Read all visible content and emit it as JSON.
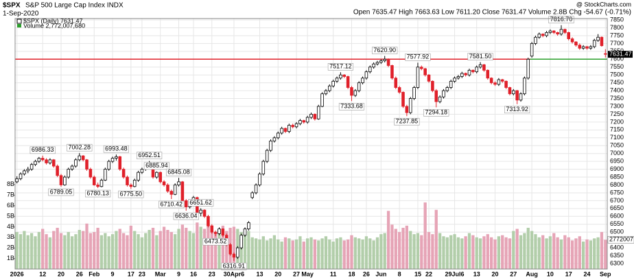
{
  "chart_data": {
    "type": "candlestick",
    "header": {
      "symbol": "$SPX",
      "name": "S&P 500 Large Cap Index INDX",
      "date": "1-Sep-2020",
      "source": "@ StockCharts.com",
      "quote": "Open 7635.47 High 7663.63 Low 7611.20 Close 7631.47 Volume 2.8B Chg -54.67 (-0.71%)"
    },
    "price_name": "$SPX (Daily) 7631.47",
    "volume_name": "Volume 2,772,007,680",
    "last_label": "7631.47",
    "volume_tag": "2772007",
    "up_color": "#000000",
    "down_color": "#e0202a",
    "volume_up_color": "#b2ceaa",
    "volume_down_color": "#e6a4b6",
    "hline": 7600,
    "hline_color": "#e0202a",
    "hline_above_color": "#2ca02c",
    "grid": true,
    "ylim": [
      6265,
      7859
    ],
    "yticks": [
      6300,
      6350,
      6400,
      6450,
      6500,
      6550,
      6600,
      6650,
      6700,
      6750,
      6800,
      6850,
      6900,
      6950,
      7000,
      7050,
      7100,
      7150,
      7200,
      7250,
      7300,
      7350,
      7400,
      7450,
      7500,
      7550,
      7600,
      7650,
      7700,
      7750,
      7800,
      7850
    ],
    "vlim": [
      0,
      23.7
    ],
    "vticks": [
      {
        "value": 1,
        "label": "1B"
      },
      {
        "value": 2,
        "label": "2B"
      },
      {
        "value": 3,
        "label": "3B"
      },
      {
        "value": 4,
        "label": "4B"
      },
      {
        "value": 5,
        "label": "5B"
      },
      {
        "value": 6,
        "label": "6B"
      },
      {
        "value": 7,
        "label": "7B"
      },
      {
        "value": 8,
        "label": "8B"
      }
    ],
    "categories": [
      "2026",
      null,
      null,
      null,
      null,
      null,
      null,
      "12",
      null,
      null,
      null,
      null,
      "20",
      null,
      null,
      null,
      null,
      "26",
      null,
      null,
      null,
      "Feb",
      null,
      null,
      null,
      null,
      "9",
      null,
      null,
      null,
      null,
      "17",
      null,
      null,
      "23",
      null,
      null,
      null,
      null,
      "Mar",
      null,
      null,
      null,
      null,
      "9",
      null,
      null,
      null,
      "16",
      null,
      null,
      null,
      null,
      "23",
      null,
      null,
      null,
      null,
      null,
      "30Apr6",
      null,
      null,
      null,
      null,
      null,
      null,
      "13",
      null,
      null,
      null,
      null,
      "20",
      null,
      null,
      null,
      null,
      "27",
      null,
      null,
      "May",
      null,
      null,
      null,
      null,
      null,
      null,
      "11",
      null,
      null,
      null,
      null,
      "18",
      null,
      null,
      null,
      "26",
      null,
      null,
      null,
      "Jun",
      null,
      null,
      null,
      null,
      "8",
      null,
      null,
      null,
      null,
      "15",
      null,
      null,
      "22",
      null,
      null,
      null,
      null,
      null,
      null,
      "29Jul6",
      null,
      null,
      null,
      null,
      null,
      "13",
      null,
      null,
      null,
      null,
      "20",
      null,
      null,
      null,
      null,
      "27",
      null,
      null,
      null,
      null,
      "Aug",
      null,
      null,
      null,
      null,
      "10",
      null,
      null,
      null,
      null,
      "17",
      null,
      null,
      null,
      null,
      "24",
      null,
      null,
      null,
      null,
      "Sep"
    ],
    "ohlc": [
      [
        6820,
        6855,
        6810,
        6840
      ],
      [
        6840,
        6880,
        6830,
        6870
      ],
      [
        6870,
        6900,
        6860,
        6890
      ],
      [
        6890,
        6915,
        6875,
        6900
      ],
      [
        6900,
        6940,
        6890,
        6930
      ],
      [
        6930,
        6960,
        6920,
        6950
      ],
      [
        6950,
        6978,
        6940,
        6970
      ],
      [
        6970,
        6986.33,
        6950,
        6960
      ],
      [
        6960,
        6970,
        6930,
        6940
      ],
      [
        6940,
        6970,
        6930,
        6960
      ],
      [
        6960,
        6965,
        6910,
        6920
      ],
      [
        6920,
        6930,
        6850,
        6860
      ],
      [
        6860,
        6870,
        6789.05,
        6800
      ],
      [
        6800,
        6860,
        6795,
        6850
      ],
      [
        6850,
        6910,
        6840,
        6900
      ],
      [
        6900,
        6930,
        6890,
        6920
      ],
      [
        6920,
        6970,
        6910,
        6960
      ],
      [
        6960,
        7002.28,
        6950,
        6985
      ],
      [
        6985,
        6990,
        6950,
        6960
      ],
      [
        6960,
        6965,
        6890,
        6900
      ],
      [
        6900,
        6910,
        6840,
        6850
      ],
      [
        6850,
        6860,
        6795,
        6800
      ],
      [
        6800,
        6815,
        6780.13,
        6790
      ],
      [
        6790,
        6840,
        6785,
        6830
      ],
      [
        6830,
        6910,
        6825,
        6900
      ],
      [
        6900,
        6960,
        6890,
        6950
      ],
      [
        6950,
        6980,
        6940,
        6970
      ],
      [
        6970,
        6993.48,
        6955,
        6980
      ],
      [
        6980,
        6985,
        6890,
        6900
      ],
      [
        6900,
        6910,
        6840,
        6850
      ],
      [
        6850,
        6860,
        6790,
        6800
      ],
      [
        6800,
        6810,
        6775.5,
        6790
      ],
      [
        6790,
        6840,
        6785,
        6830
      ],
      [
        6830,
        6890,
        6820,
        6880
      ],
      [
        6880,
        6910,
        6870,
        6900
      ],
      [
        6900,
        6930,
        6890,
        6920
      ],
      [
        6920,
        6952.51,
        6910,
        6935
      ],
      [
        6935,
        6940,
        6840,
        6850
      ],
      [
        6850,
        6885.94,
        6840,
        6880
      ],
      [
        6880,
        6885,
        6810,
        6820
      ],
      [
        6820,
        6830,
        6790,
        6800
      ],
      [
        6800,
        6810,
        6750,
        6760
      ],
      [
        6760,
        6770,
        6710.42,
        6740
      ],
      [
        6740,
        6810,
        6735,
        6800
      ],
      [
        6800,
        6845.08,
        6790,
        6820
      ],
      [
        6820,
        6825,
        6690,
        6700
      ],
      [
        6700,
        6710,
        6636.04,
        6660
      ],
      [
        6660,
        6710,
        6650,
        6700
      ],
      [
        6700,
        6730,
        6690,
        6720
      ],
      [
        6720,
        6725,
        6610,
        6620
      ],
      [
        6620,
        6651.62,
        6600,
        6640
      ],
      [
        6640,
        6645,
        6590,
        6600
      ],
      [
        6600,
        6610,
        6530,
        6540
      ],
      [
        6540,
        6550,
        6490,
        6500
      ],
      [
        6500,
        6510,
        6473.52,
        6490
      ],
      [
        6490,
        6530,
        6480,
        6520
      ],
      [
        6520,
        6525,
        6470,
        6480
      ],
      [
        6480,
        6490,
        6410,
        6420
      ],
      [
        6420,
        6430,
        6350,
        6360
      ],
      [
        6360,
        6370,
        6316.91,
        6340
      ],
      [
        6340,
        6410,
        6330,
        6400
      ],
      [
        6400,
        6490,
        6390,
        6480
      ],
      [
        6480,
        6530,
        6470,
        6520
      ],
      [
        6520,
        6570,
        6510,
        6560
      ],
      [
        6720,
        6760,
        6710,
        6750
      ],
      [
        6750,
        6810,
        6740,
        6800
      ],
      [
        6800,
        6880,
        6790,
        6870
      ],
      [
        6870,
        6960,
        6860,
        6950
      ],
      [
        6950,
        7030,
        6940,
        7020
      ],
      [
        7020,
        7090,
        7010,
        7080
      ],
      [
        7080,
        7110,
        7070,
        7100
      ],
      [
        7100,
        7140,
        7090,
        7130
      ],
      [
        7130,
        7170,
        7120,
        7160
      ],
      [
        7160,
        7165,
        7130,
        7140
      ],
      [
        7140,
        7190,
        7130,
        7180
      ],
      [
        7180,
        7190,
        7160,
        7170
      ],
      [
        7170,
        7200,
        7160,
        7190
      ],
      [
        7190,
        7220,
        7180,
        7210
      ],
      [
        7210,
        7215,
        7190,
        7200
      ],
      [
        7200,
        7240,
        7190,
        7230
      ],
      [
        7230,
        7260,
        7220,
        7250
      ],
      [
        7250,
        7255,
        7210,
        7220
      ],
      [
        7220,
        7310,
        7215,
        7300
      ],
      [
        7300,
        7390,
        7295,
        7380
      ],
      [
        7380,
        7410,
        7370,
        7400
      ],
      [
        7400,
        7440,
        7390,
        7430
      ],
      [
        7430,
        7470,
        7420,
        7460
      ],
      [
        7460,
        7490,
        7450,
        7480
      ],
      [
        7480,
        7517.12,
        7470,
        7500
      ],
      [
        7500,
        7505,
        7480,
        7490
      ],
      [
        7490,
        7495,
        7410,
        7420
      ],
      [
        7420,
        7430,
        7333.68,
        7370
      ],
      [
        7370,
        7410,
        7360,
        7400
      ],
      [
        7400,
        7460,
        7390,
        7450
      ],
      [
        7450,
        7490,
        7440,
        7480
      ],
      [
        7480,
        7530,
        7470,
        7520
      ],
      [
        7520,
        7560,
        7510,
        7550
      ],
      [
        7550,
        7580,
        7540,
        7570
      ],
      [
        7570,
        7590,
        7560,
        7580
      ],
      [
        7580,
        7600,
        7570,
        7590
      ],
      [
        7590,
        7620.9,
        7580,
        7600
      ],
      [
        7600,
        7605,
        7550,
        7560
      ],
      [
        7560,
        7565,
        7470,
        7480
      ],
      [
        7480,
        7490,
        7410,
        7420
      ],
      [
        7420,
        7430,
        7380,
        7390
      ],
      [
        7390,
        7395,
        7290,
        7300
      ],
      [
        7300,
        7310,
        7237.85,
        7260
      ],
      [
        7260,
        7360,
        7250,
        7350
      ],
      [
        7350,
        7430,
        7340,
        7420
      ],
      [
        7420,
        7577.92,
        7410,
        7550
      ],
      [
        7550,
        7560,
        7530,
        7540
      ],
      [
        7540,
        7545,
        7490,
        7500
      ],
      [
        7500,
        7505,
        7450,
        7460
      ],
      [
        7460,
        7465,
        7390,
        7400
      ],
      [
        7400,
        7410,
        7294.18,
        7330
      ],
      [
        7330,
        7370,
        7320,
        7360
      ],
      [
        7360,
        7410,
        7350,
        7400
      ],
      [
        7400,
        7430,
        7390,
        7420
      ],
      [
        7420,
        7470,
        7410,
        7460
      ],
      [
        7460,
        7490,
        7450,
        7480
      ],
      [
        7480,
        7500,
        7470,
        7490
      ],
      [
        7490,
        7520,
        7480,
        7510
      ],
      [
        7510,
        7515,
        7490,
        7500
      ],
      [
        7500,
        7540,
        7490,
        7530
      ],
      [
        7530,
        7535,
        7510,
        7520
      ],
      [
        7520,
        7560,
        7510,
        7550
      ],
      [
        7550,
        7581.5,
        7540,
        7565
      ],
      [
        7565,
        7570,
        7520,
        7530
      ],
      [
        7530,
        7535,
        7470,
        7480
      ],
      [
        7480,
        7485,
        7440,
        7450
      ],
      [
        7450,
        7460,
        7430,
        7440
      ],
      [
        7440,
        7480,
        7430,
        7470
      ],
      [
        7470,
        7475,
        7450,
        7460
      ],
      [
        7460,
        7465,
        7410,
        7420
      ],
      [
        7420,
        7425,
        7370,
        7380
      ],
      [
        7380,
        7410,
        7370,
        7400
      ],
      [
        7400,
        7405,
        7313.92,
        7340
      ],
      [
        7340,
        7390,
        7330,
        7380
      ],
      [
        7380,
        7490,
        7370,
        7480
      ],
      [
        7480,
        7610,
        7470,
        7600
      ],
      [
        7620,
        7710,
        7610,
        7700
      ],
      [
        7700,
        7750,
        7690,
        7740
      ],
      [
        7740,
        7770,
        7730,
        7760
      ],
      [
        7760,
        7765,
        7740,
        7750
      ],
      [
        7750,
        7780,
        7740,
        7770
      ],
      [
        7770,
        7790,
        7760,
        7780
      ],
      [
        7780,
        7785,
        7760,
        7770
      ],
      [
        7770,
        7775,
        7750,
        7760
      ],
      [
        7760,
        7816.7,
        7750,
        7790
      ],
      [
        7790,
        7795,
        7760,
        7770
      ],
      [
        7770,
        7775,
        7720,
        7730
      ],
      [
        7730,
        7740,
        7700,
        7710
      ],
      [
        7710,
        7715,
        7680,
        7690
      ],
      [
        7690,
        7700,
        7660,
        7670
      ],
      [
        7670,
        7690,
        7660,
        7680
      ],
      [
        7680,
        7685,
        7660,
        7670
      ],
      [
        7670,
        7690,
        7660,
        7680
      ],
      [
        7680,
        7730,
        7670,
        7720
      ],
      [
        7720,
        7760,
        7710,
        7740
      ],
      [
        7740,
        7745,
        7680,
        7686.14
      ],
      [
        7635.47,
        7663.63,
        7611.2,
        7631.47
      ]
    ],
    "volume": [
      3.5,
      3.3,
      3.6,
      3.2,
      3.4,
      3.1,
      3.5,
      3.8,
      3.3,
      3.0,
      3.6,
      3.9,
      3.4,
      3.2,
      3.5,
      3.1,
      3.3,
      3.7,
      3.6,
      4.3,
      3.4,
      3.5,
      3.9,
      3.2,
      3.4,
      3.1,
      3.3,
      3.6,
      3.8,
      3.4,
      3.2,
      4.1,
      3.6,
      3.3,
      3.0,
      3.4,
      3.7,
      3.9,
      3.2,
      3.6,
      4.0,
      3.7,
      3.5,
      3.3,
      3.8,
      4.2,
      3.9,
      3.6,
      3.4,
      4.4,
      4.0,
      3.8,
      4.6,
      3.9,
      3.5,
      3.7,
      4.1,
      3.6,
      3.9,
      4.0,
      3.8,
      3.5,
      3.3,
      3.6,
      3.0,
      2.9,
      2.8,
      3.1,
      2.7,
      2.9,
      3.2,
      2.8,
      2.6,
      3.0,
      2.9,
      2.7,
      2.8,
      3.1,
      2.6,
      2.9,
      3.0,
      2.8,
      2.7,
      2.9,
      3.1,
      2.8,
      2.6,
      2.9,
      3.0,
      2.7,
      2.8,
      3.2,
      3.0,
      2.9,
      2.8,
      3.1,
      2.9,
      2.7,
      3.0,
      3.3,
      3.4,
      5.5,
      4.2,
      3.8,
      3.5,
      3.9,
      4.1,
      3.6,
      3.3,
      3.4,
      3.2,
      6.3,
      3.5,
      3.3,
      5.6,
      3.4,
      3.1,
      3.0,
      3.2,
      3.3,
      3.0,
      2.9,
      3.1,
      3.4,
      3.2,
      3.0,
      2.9,
      3.1,
      3.3,
      3.0,
      2.8,
      3.1,
      3.2,
      3.0,
      2.9,
      3.6,
      3.8,
      3.2,
      3.4,
      3.9,
      3.6,
      3.3,
      3.0,
      3.2,
      2.9,
      3.1,
      3.4,
      3.0,
      2.8,
      3.2,
      3.0,
      2.7,
      2.9,
      3.1,
      2.6,
      2.8,
      2.7,
      2.9,
      3.0,
      3.5,
      2.77200768
    ],
    "annotations": [
      {
        "text": "6986.33",
        "value": 6986.33
      },
      {
        "text": "6789.05",
        "value": 6789.05
      },
      {
        "text": "7002.28",
        "value": 7002.28
      },
      {
        "text": "6780.13",
        "value": 6780.13
      },
      {
        "text": "6993.48",
        "value": 6993.48
      },
      {
        "text": "6775.50",
        "value": 6775.5
      },
      {
        "text": "6952.51",
        "value": 6952.51
      },
      {
        "text": "6885.94",
        "value": 6885.94
      },
      {
        "text": "6710.42",
        "value": 6710.42
      },
      {
        "text": "6845.08",
        "value": 6845.08
      },
      {
        "text": "6636.04",
        "value": 6636.04
      },
      {
        "text": "6651.62",
        "value": 6651.62
      },
      {
        "text": "6473.52",
        "value": 6473.52
      },
      {
        "text": "6316.91",
        "value": 6316.91
      },
      {
        "text": "7517.12",
        "value": 7517.12
      },
      {
        "text": "7333.68",
        "value": 7333.68
      },
      {
        "text": "7620.90",
        "value": 7620.9
      },
      {
        "text": "7237.85",
        "value": 7237.85
      },
      {
        "text": "7577.92",
        "value": 7577.92
      },
      {
        "text": "7294.18",
        "value": 7294.18
      },
      {
        "text": "7581.50",
        "value": 7581.5
      },
      {
        "text": "7313.92",
        "value": 7313.92
      },
      {
        "text": "7816.70",
        "value": 7816.7
      }
    ]
  }
}
